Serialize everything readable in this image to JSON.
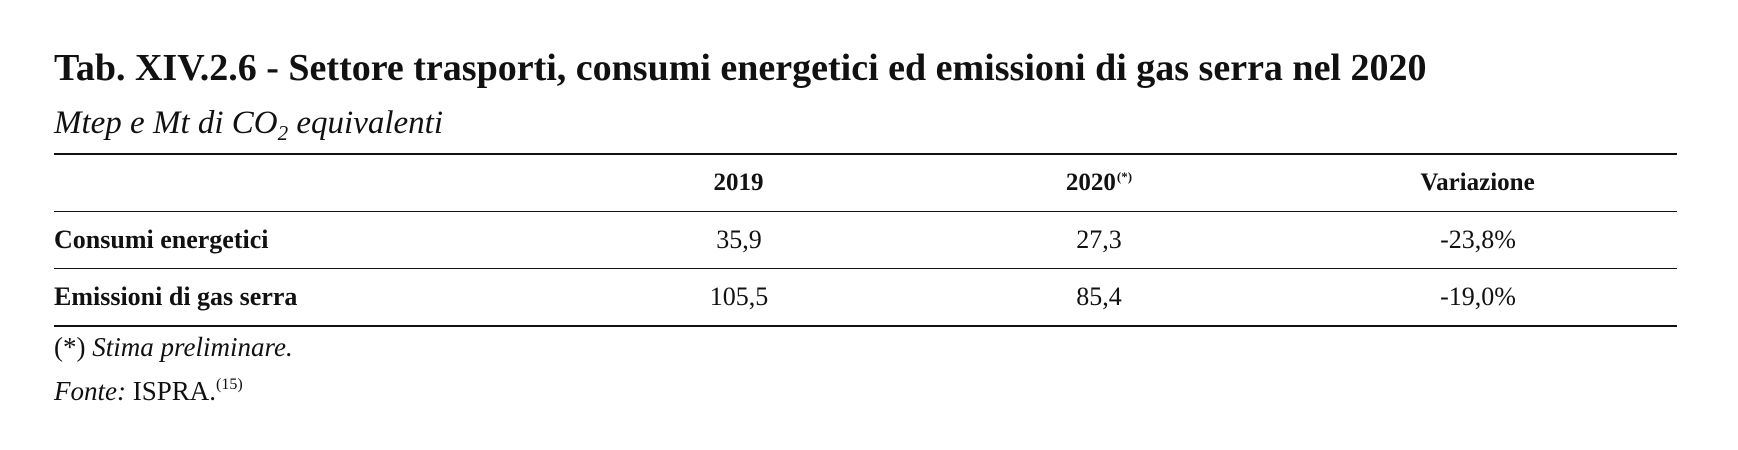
{
  "table": {
    "title": "Tab. XIV.2.6 - Settore trasporti, consumi energetici ed emissioni di gas serra nel 2020",
    "subtitle_before": "Mtep e Mt di CO",
    "subtitle_subscript": "2",
    "subtitle_after": " equivalenti",
    "columns": [
      {
        "label": "2019",
        "marker": ""
      },
      {
        "label": "2020",
        "marker": "(*)"
      },
      {
        "label": "Variazione",
        "marker": ""
      }
    ],
    "rows": [
      {
        "label": "Consumi energetici",
        "values": [
          "35,9",
          "27,3",
          "-23,8%"
        ]
      },
      {
        "label": "Emissioni di gas serra",
        "values": [
          "105,5",
          "85,4",
          "-19,0%"
        ]
      }
    ]
  },
  "footnote": {
    "marker": "(*)",
    "text": "Stima preliminare."
  },
  "source": {
    "label": "Fonte:",
    "text": "ISPRA.",
    "ref": "(15)"
  }
}
